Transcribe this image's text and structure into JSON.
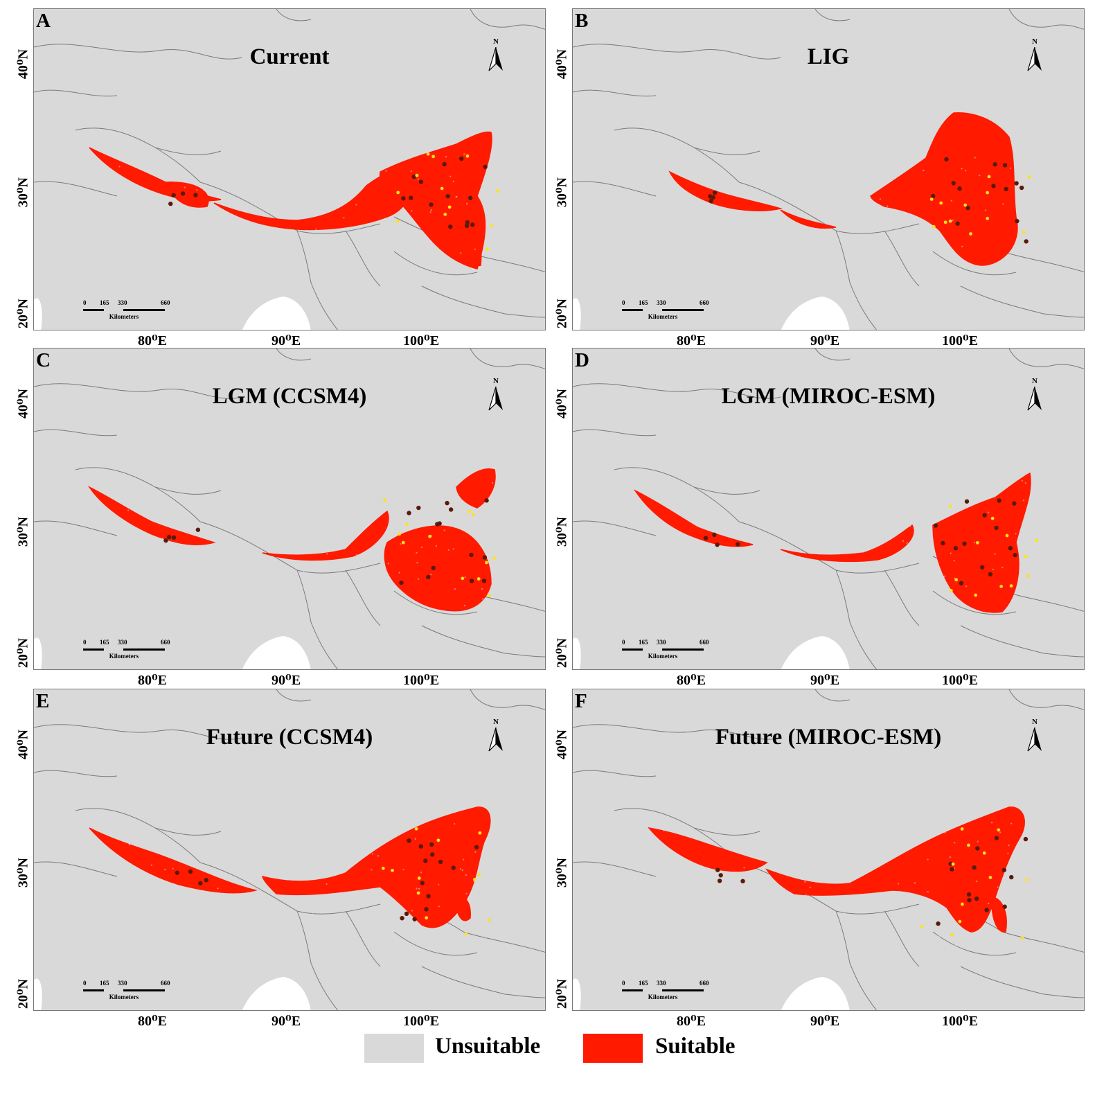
{
  "panels": [
    {
      "letter": "A",
      "title": "Current"
    },
    {
      "letter": "B",
      "title": "LIG"
    },
    {
      "letter": "C",
      "title": "LGM (CCSM4)"
    },
    {
      "letter": "D",
      "title": "LGM (MIROC-ESM)"
    },
    {
      "letter": "E",
      "title": "Future (CCSM4)"
    },
    {
      "letter": "F",
      "title": "Future (MIROC-ESM)"
    }
  ],
  "latitude_labels": [
    "40⁰N",
    "30⁰N",
    "20⁰N"
  ],
  "longitude_labels": [
    "80⁰E",
    "90⁰E",
    "100⁰E"
  ],
  "north_arrow_label": "N",
  "scale_bar": {
    "ticks": [
      "0",
      "165",
      "330",
      "660"
    ],
    "unit": "Kilometers"
  },
  "legend": [
    {
      "label": "Unsuitable",
      "color": "#d9d9d9"
    },
    {
      "label": "Suitable",
      "color": "#ff1a00"
    }
  ],
  "colors": {
    "background": "#d9d9d9",
    "suitable": "#ff1a00",
    "borders": "#777777",
    "occurrence_dark": "#5a1a0a",
    "occurrence_light": "#ffe21a"
  }
}
